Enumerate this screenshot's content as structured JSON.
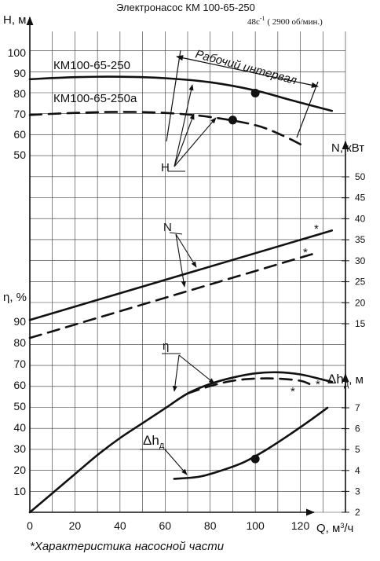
{
  "chart_data": {
    "type": "line",
    "title": "Электронасос КМ  100-65-250",
    "speed_prefix": "48с",
    "speed_sup": "-1",
    "speed_rest": " ( 2900 об/мин.)",
    "x_label": "Q, м",
    "x_label_sup": "3",
    "x_label_unit": "/ч",
    "x_ticks": [
      "0",
      "20",
      "40",
      "60",
      "80",
      "100",
      "120"
    ],
    "xlim": [
      0,
      140
    ],
    "grid": true,
    "axes": {
      "H": {
        "label": "H, м",
        "ticks": [
          "50",
          "60",
          "70",
          "80",
          "90",
          "100"
        ],
        "range": [
          50,
          100
        ]
      },
      "eta": {
        "label": "η, %",
        "ticks": [
          "0",
          "10",
          "20",
          "30",
          "40",
          "50",
          "60",
          "70",
          "80",
          "90"
        ],
        "range": [
          0,
          90
        ]
      },
      "N": {
        "label": "N, кВт",
        "ticks": [
          "15",
          "20",
          "25",
          "30",
          "35",
          "40",
          "45",
          "50"
        ],
        "range": [
          15,
          50
        ]
      },
      "dh": {
        "label": "Δh",
        "label_sub": "д",
        "label_unit": ", м",
        "ticks": [
          "2",
          "3",
          "4",
          "5",
          "6",
          "7"
        ],
        "range": [
          2,
          7
        ]
      }
    },
    "series": [
      {
        "name": "КМ100-65-250",
        "quantity": "H",
        "axis": "H",
        "style": "solid",
        "x": [
          0,
          20,
          40,
          60,
          80,
          100,
          115,
          134
        ],
        "y": [
          87,
          88,
          88.2,
          87.5,
          85.5,
          81.5,
          77,
          71.5
        ],
        "marker": {
          "x": 100,
          "y": 80.2
        }
      },
      {
        "name": "КМ100-65-250а",
        "quantity": "H",
        "axis": "H",
        "style": "dashed",
        "x": [
          0,
          20,
          40,
          60,
          80,
          100,
          112,
          122
        ],
        "y": [
          69.5,
          70.5,
          71,
          70.5,
          68.5,
          64.5,
          59.5,
          54
        ],
        "marker": {
          "x": 90,
          "y": 67
        }
      },
      {
        "quantity": "N",
        "axis": "N",
        "style": "solid",
        "x": [
          0,
          134
        ],
        "y": [
          15.9,
          37.2
        ]
      },
      {
        "quantity": "N",
        "axis": "N",
        "style": "dashed",
        "x": [
          0,
          126
        ],
        "y": [
          11.6,
          31.7
        ]
      },
      {
        "quantity": "η",
        "axis": "eta",
        "style": "solid",
        "x": [
          0,
          10,
          20,
          30,
          40,
          50,
          60,
          70,
          80,
          90,
          100,
          110,
          120,
          130,
          134
        ],
        "y": [
          0,
          9,
          18,
          27,
          35,
          42,
          49,
          56,
          60.5,
          63.5,
          65.5,
          66,
          65,
          62.5,
          61.5
        ]
      },
      {
        "quantity": "η",
        "axis": "eta",
        "style": "dashed",
        "x": [
          70,
          80,
          90,
          100,
          110,
          120,
          124
        ],
        "y": [
          56,
          59.5,
          62,
          63,
          63,
          62,
          60.5
        ]
      },
      {
        "quantity": "Δh",
        "axis": "dh",
        "style": "solid",
        "x": [
          64,
          75,
          85,
          95,
          105,
          115,
          125,
          132
        ],
        "y": [
          3.6,
          3.7,
          4,
          4.4,
          5,
          5.7,
          6.45,
          7
        ],
        "marker": {
          "x": 100,
          "y": 4.55
        }
      }
    ],
    "annotations": {
      "working_interval": "Рабочий интервал",
      "label_H": "H",
      "label_N": "N",
      "label_eta": "η",
      "label_dh": "Δh",
      "label_dh_sub": "д",
      "star": "*",
      "footnote": "*Характеристика насосной части"
    }
  }
}
